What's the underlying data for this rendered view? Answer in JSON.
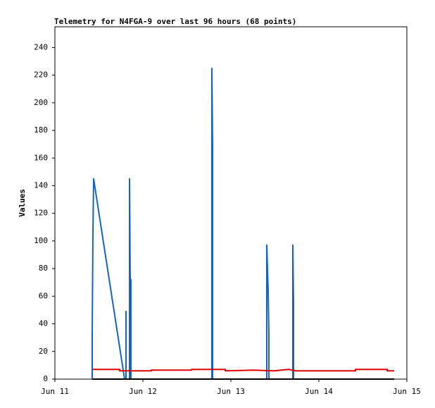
{
  "chart_data": {
    "type": "line",
    "title": "Telemetry for N4FGA-9 over last 96 hours (68 points)",
    "ylabel": "Values",
    "xlim": [
      11,
      15
    ],
    "xticks": [
      {
        "value": 11,
        "label": "Jun 11"
      },
      {
        "value": 12,
        "label": "Jun 12"
      },
      {
        "value": 13,
        "label": "Jun 13"
      },
      {
        "value": 14,
        "label": "Jun 14"
      },
      {
        "value": 15,
        "label": "Jun 15"
      }
    ],
    "ylim": [
      0,
      255
    ],
    "yticks": [
      0,
      20,
      40,
      60,
      80,
      100,
      120,
      140,
      160,
      180,
      200,
      220,
      240
    ],
    "series": [
      {
        "color": "#1565c0",
        "x": [
          11.424,
          11.424,
          11.432,
          11.44,
          11.792,
          11.808,
          11.808,
          11.808,
          11.848,
          11.848,
          11.856,
          11.864,
          11.864,
          12.784,
          12.784,
          12.792,
          12.792,
          13.408,
          13.408,
          13.424,
          13.432,
          13.432,
          13.704,
          13.704,
          13.712,
          13.712
        ],
        "values": [
          0,
          32,
          104,
          145,
          0,
          0,
          49,
          0,
          0,
          145,
          72,
          72,
          0,
          0,
          225,
          168,
          0,
          0,
          97,
          64,
          32,
          0,
          0,
          97,
          56,
          0
        ]
      },
      {
        "color": "#e00000",
        "x": [
          11.424,
          11.736,
          11.736,
          12.096,
          12.096,
          12.552,
          12.552,
          12.936,
          12.936,
          13.256,
          13.496,
          13.576,
          13.656,
          13.736,
          14.416,
          14.416,
          14.776,
          14.776,
          14.856
        ],
        "values": [
          7,
          7,
          6,
          6,
          6.5,
          6.5,
          7,
          7,
          6,
          6.5,
          6,
          6.5,
          7,
          6,
          6,
          7,
          7,
          6,
          6
        ]
      },
      {
        "color": "#000000",
        "x": [
          11.424,
          14.856
        ],
        "values": [
          0,
          0
        ]
      }
    ]
  }
}
